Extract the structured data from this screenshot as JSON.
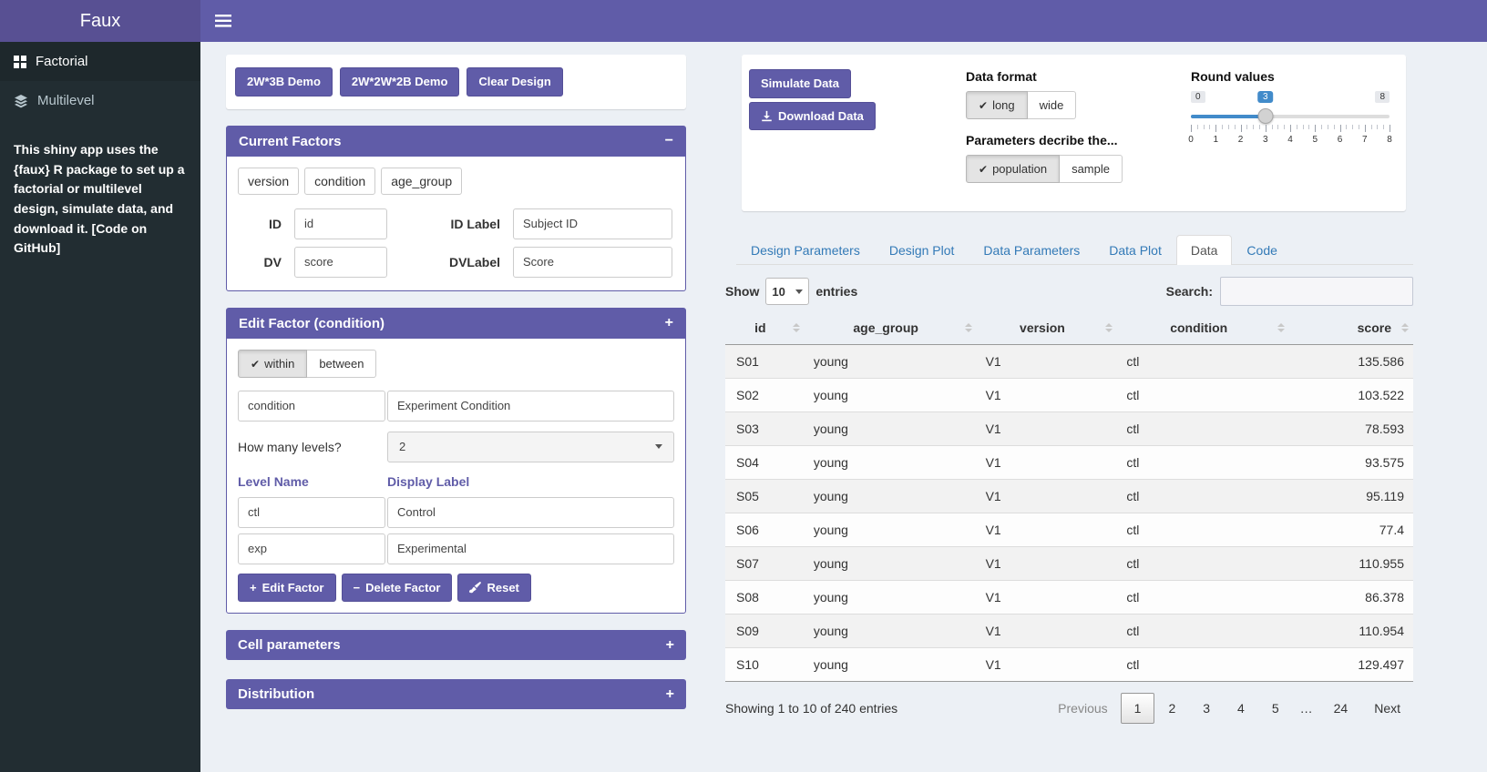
{
  "icons": {
    "check": "✔",
    "plus": "+",
    "minus": "−"
  },
  "navbar": {
    "title": "Faux"
  },
  "sidebar": {
    "items": [
      {
        "label": "Factorial"
      },
      {
        "label": "Multilevel"
      }
    ],
    "active_item": "Factorial",
    "description": "This shiny app uses the {faux} R package to set up a factorial or multilevel design, simulate data, and download it. ",
    "github_link": "[Code on GitHub]"
  },
  "design": {
    "demo_buttons": [
      "2W*3B Demo",
      "2W*2W*2B Demo",
      "Clear Design"
    ],
    "current_factors": {
      "title": "Current Factors",
      "collapse_icon": "−",
      "chips": [
        "version",
        "condition",
        "age_group"
      ],
      "id_label": "ID",
      "id_value": "id",
      "idlabel_label": "ID Label",
      "idlabel_value": "Subject ID",
      "dv_label": "DV",
      "dv_value": "score",
      "dvlabel_label": "DVLabel",
      "dvlabel_value": "Score"
    },
    "edit_factor": {
      "title": "Edit Factor (condition)",
      "collapse_icon": "+",
      "type_options": [
        "within",
        "between"
      ],
      "type_selected": "within",
      "name_value": "condition",
      "display_value": "Experiment Condition",
      "levels_question": "How many levels?",
      "levels_count": "2",
      "level_name_header": "Level Name",
      "display_label_header": "Display Label",
      "levels": [
        {
          "name": "ctl",
          "label": "Control"
        },
        {
          "name": "exp",
          "label": "Experimental"
        }
      ],
      "edit_button": "Edit Factor",
      "delete_button": "Delete Factor",
      "reset_button": "Reset"
    },
    "cell_parameters": {
      "title": "Cell parameters",
      "collapse_icon": "+"
    },
    "distribution": {
      "title": "Distribution",
      "collapse_icon": "+"
    }
  },
  "simulation": {
    "simulate_button": "Simulate Data",
    "download_button": "Download Data",
    "data_format": {
      "label": "Data format",
      "options": [
        "long",
        "wide"
      ],
      "selected": "long"
    },
    "describe": {
      "label": "Parameters decribe the...",
      "options": [
        "population",
        "sample"
      ],
      "selected": "population"
    },
    "round_values": {
      "label": "Round values",
      "min": 0,
      "max": 8,
      "value": 3,
      "ticks": [
        "0",
        "1",
        "2",
        "3",
        "4",
        "5",
        "6",
        "7",
        "8"
      ]
    }
  },
  "tabs": {
    "items": [
      "Design Parameters",
      "Design Plot",
      "Data Parameters",
      "Data Plot",
      "Data",
      "Code"
    ],
    "active": "Data"
  },
  "datatable": {
    "show_label": "Show",
    "entries_value": "10",
    "entries_label": "entries",
    "search_label": "Search:",
    "search_value": "",
    "columns": [
      "id",
      "age_group",
      "version",
      "condition",
      "score"
    ],
    "rows": [
      [
        "S01",
        "young",
        "V1",
        "ctl",
        "135.586"
      ],
      [
        "S02",
        "young",
        "V1",
        "ctl",
        "103.522"
      ],
      [
        "S03",
        "young",
        "V1",
        "ctl",
        "78.593"
      ],
      [
        "S04",
        "young",
        "V1",
        "ctl",
        "93.575"
      ],
      [
        "S05",
        "young",
        "V1",
        "ctl",
        "95.119"
      ],
      [
        "S06",
        "young",
        "V1",
        "ctl",
        "77.4"
      ],
      [
        "S07",
        "young",
        "V1",
        "ctl",
        "110.955"
      ],
      [
        "S08",
        "young",
        "V1",
        "ctl",
        "86.378"
      ],
      [
        "S09",
        "young",
        "V1",
        "ctl",
        "110.954"
      ],
      [
        "S10",
        "young",
        "V1",
        "ctl",
        "129.497"
      ]
    ],
    "info": "Showing 1 to 10 of 240 entries",
    "pagination": {
      "previous": "Previous",
      "pages": [
        "1",
        "2",
        "3",
        "4",
        "5",
        "…",
        "24"
      ],
      "active_page": "1",
      "next": "Next"
    }
  }
}
